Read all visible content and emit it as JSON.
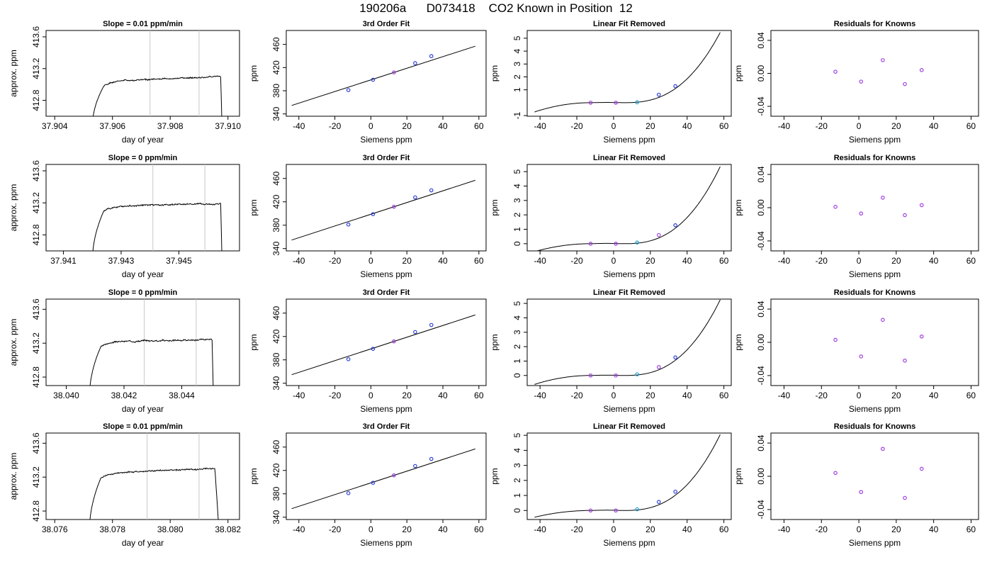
{
  "page": {
    "title": "190206a      D073418    CO2 Known in Position  12"
  },
  "chart_data": [
    {
      "type": "line",
      "row": 0,
      "col": 0,
      "title": "Slope =  0.01  ppm/min",
      "xlabel": "day of year",
      "ylabel": "approx. ppm",
      "xlim": [
        37.9037,
        37.9104
      ],
      "ylim": [
        412.6,
        413.68
      ],
      "xticks": [
        37.904,
        37.906,
        37.908,
        37.91
      ],
      "xtick_labels": [
        "37.904",
        "37.906",
        "37.908",
        "37.910"
      ],
      "yticks": [
        412.8,
        413.2,
        413.6
      ],
      "ytick_labels": [
        "412.8",
        "413.2",
        "413.6"
      ],
      "vlines": [
        37.9073,
        37.909
      ],
      "trace": {
        "start": 37.9053,
        "rise_end": 37.9057,
        "plateau_start": 413.04,
        "plateau_end": 413.1,
        "end": 37.90975,
        "drop_end": 37.9098,
        "noise": 0.013,
        "seed": 1
      },
      "series": [
        {
          "values": []
        }
      ]
    },
    {
      "type": "line",
      "row": 0,
      "col": 1,
      "title": "3rd Order Fit",
      "xlabel": "Siemens ppm",
      "ylabel": "ppm",
      "xlim": [
        -47,
        64
      ],
      "ylim": [
        336,
        484
      ],
      "xticks": [
        -40,
        -20,
        0,
        20,
        40,
        60
      ],
      "xtick_labels": [
        "-40",
        "-20",
        "0",
        "20",
        "40",
        "60"
      ],
      "yticks": [
        340,
        380,
        420,
        460
      ],
      "ytick_labels": [
        "340",
        "380",
        "420",
        "460"
      ],
      "line": {
        "x": [
          -44,
          58
        ],
        "slope": 1.0027,
        "intercept": 398.7
      },
      "points": [
        {
          "x": -12.5,
          "y": 381.1,
          "color": "#2b3fd6"
        },
        {
          "x": 1.2,
          "y": 398.9,
          "color": "#2b3fd6"
        },
        {
          "x": 12.8,
          "y": 411.6,
          "color": "#a040e0"
        },
        {
          "x": 24.6,
          "y": 427.6,
          "color": "#2b3fd6"
        },
        {
          "x": 33.6,
          "y": 439.7,
          "color": "#2b3fd6"
        }
      ]
    },
    {
      "type": "line",
      "row": 0,
      "col": 2,
      "title": "Linear Fit Removed",
      "xlabel": "Siemens ppm",
      "ylabel": "ppm",
      "xlim": [
        -47,
        64
      ],
      "ylim": [
        -1.05,
        5.6
      ],
      "xticks": [
        -40,
        -20,
        0,
        20,
        40,
        60
      ],
      "xtick_labels": [
        "-40",
        "-20",
        "0",
        "20",
        "40",
        "60"
      ],
      "yticks": [
        -1,
        1,
        2,
        3,
        4,
        5
      ],
      "ytick_labels": [
        "-1",
        "1",
        "2",
        "3",
        "4",
        "5"
      ],
      "curve": {
        "x": [
          -43,
          58
        ],
        "ya": -0.72,
        "y1": 0.0,
        "xm": 5,
        "xr": 58,
        "yr": 5.45
      },
      "points": [
        {
          "x": -12.5,
          "y": 0.0,
          "color": "#a040e0"
        },
        {
          "x": 1.2,
          "y": 0.0,
          "color": "#a040e0"
        },
        {
          "x": 12.8,
          "y": 0.03,
          "color": "#20a0d0"
        },
        {
          "x": 24.6,
          "y": 0.62,
          "color": "#2b3fd6"
        },
        {
          "x": 33.6,
          "y": 1.28,
          "color": "#2b3fd6"
        }
      ]
    },
    {
      "type": "scatter",
      "row": 0,
      "col": 3,
      "title": "Residuals for Knowns",
      "xlabel": "Siemens ppm",
      "ylabel": "ppm",
      "xlim": [
        -47,
        64
      ],
      "ylim": [
        -0.052,
        0.052
      ],
      "xticks": [
        -40,
        -20,
        0,
        20,
        40,
        60
      ],
      "xtick_labels": [
        "-40",
        "-20",
        "0",
        "20",
        "40",
        "60"
      ],
      "yticks": [
        -0.04,
        0.0,
        0.04
      ],
      "ytick_labels": [
        "-0.04",
        "0.00",
        "0.04"
      ],
      "points": [
        {
          "x": -12.5,
          "y": 0.002,
          "color": "#a040e0"
        },
        {
          "x": 1.2,
          "y": -0.01,
          "color": "#a040e0"
        },
        {
          "x": 12.8,
          "y": 0.016,
          "color": "#a040e0"
        },
        {
          "x": 24.6,
          "y": -0.013,
          "color": "#a040e0"
        },
        {
          "x": 33.6,
          "y": 0.004,
          "color": "#a040e0"
        }
      ]
    },
    {
      "type": "line",
      "row": 1,
      "col": 0,
      "title": "Slope =  0  ppm/min",
      "xlabel": "day of year",
      "ylabel": "approx. ppm",
      "xlim": [
        37.9404,
        37.9471
      ],
      "ylim": [
        412.6,
        413.68
      ],
      "xticks": [
        37.941,
        37.943,
        37.945
      ],
      "xtick_labels": [
        "37.941",
        "37.943",
        "37.945"
      ],
      "yticks": [
        412.8,
        413.2,
        413.6
      ],
      "ytick_labels": [
        "412.8",
        "413.2",
        "413.6"
      ],
      "vlines": [
        37.9441,
        37.9459
      ],
      "trace": {
        "start": 37.942,
        "rise_end": 37.9424,
        "plateau_start": 413.16,
        "plateau_end": 413.19,
        "end": 37.94645,
        "drop_end": 37.9465,
        "noise": 0.014,
        "seed": 2
      },
      "series": [
        {
          "values": []
        }
      ]
    },
    {
      "type": "line",
      "row": 1,
      "col": 1,
      "title": "3rd Order Fit",
      "xlabel": "Siemens ppm",
      "ylabel": "ppm",
      "xlim": [
        -47,
        64
      ],
      "ylim": [
        336,
        484
      ],
      "xticks": [
        -40,
        -20,
        0,
        20,
        40,
        60
      ],
      "xtick_labels": [
        "-40",
        "-20",
        "0",
        "20",
        "40",
        "60"
      ],
      "yticks": [
        340,
        380,
        420,
        460
      ],
      "ytick_labels": [
        "340",
        "380",
        "420",
        "460"
      ],
      "line": {
        "x": [
          -44,
          58
        ],
        "slope": 1.0027,
        "intercept": 398.7
      },
      "points": [
        {
          "x": -12.5,
          "y": 381.1,
          "color": "#2b3fd6"
        },
        {
          "x": 1.2,
          "y": 398.9,
          "color": "#2b3fd6"
        },
        {
          "x": 12.8,
          "y": 411.6,
          "color": "#a040e0"
        },
        {
          "x": 24.6,
          "y": 427.6,
          "color": "#2b3fd6"
        },
        {
          "x": 33.6,
          "y": 439.7,
          "color": "#2b3fd6"
        }
      ]
    },
    {
      "type": "line",
      "row": 1,
      "col": 2,
      "title": "Linear Fit Removed",
      "xlabel": "Siemens ppm",
      "ylabel": "ppm",
      "xlim": [
        -47,
        64
      ],
      "ylim": [
        -0.5,
        5.5
      ],
      "xticks": [
        -40,
        -20,
        0,
        20,
        40,
        60
      ],
      "xtick_labels": [
        "-40",
        "-20",
        "0",
        "20",
        "40",
        "60"
      ],
      "yticks": [
        0,
        1,
        2,
        3,
        4,
        5
      ],
      "ytick_labels": [
        "0",
        "1",
        "2",
        "3",
        "4",
        "5"
      ],
      "curve": {
        "x": [
          -43,
          58
        ],
        "ya": -0.55,
        "y1": 0.0,
        "xm": 5,
        "xr": 58,
        "yr": 5.35
      },
      "points": [
        {
          "x": -12.5,
          "y": 0.0,
          "color": "#a040e0"
        },
        {
          "x": 1.2,
          "y": 0.0,
          "color": "#a040e0"
        },
        {
          "x": 12.8,
          "y": 0.08,
          "color": "#20a0d0"
        },
        {
          "x": 24.6,
          "y": 0.6,
          "color": "#a040e0"
        },
        {
          "x": 33.6,
          "y": 1.28,
          "color": "#2b3fd6"
        }
      ]
    },
    {
      "type": "scatter",
      "row": 1,
      "col": 3,
      "title": "Residuals for Knowns",
      "xlabel": "Siemens ppm",
      "ylabel": "ppm",
      "xlim": [
        -47,
        64
      ],
      "ylim": [
        -0.052,
        0.052
      ],
      "xticks": [
        -40,
        -20,
        0,
        20,
        40,
        60
      ],
      "xtick_labels": [
        "-40",
        "-20",
        "0",
        "20",
        "40",
        "60"
      ],
      "yticks": [
        -0.04,
        0.0,
        0.04
      ],
      "ytick_labels": [
        "-0.04",
        "0.00",
        "0.04"
      ],
      "points": [
        {
          "x": -12.5,
          "y": 0.001,
          "color": "#a040e0"
        },
        {
          "x": 1.2,
          "y": -0.007,
          "color": "#a040e0"
        },
        {
          "x": 12.8,
          "y": 0.012,
          "color": "#a040e0"
        },
        {
          "x": 24.6,
          "y": -0.009,
          "color": "#a040e0"
        },
        {
          "x": 33.6,
          "y": 0.003,
          "color": "#a040e0"
        }
      ]
    },
    {
      "type": "line",
      "row": 2,
      "col": 0,
      "title": "Slope =  0  ppm/min",
      "xlabel": "day of year",
      "ylabel": "approx. ppm",
      "xlim": [
        38.0393,
        38.046
      ],
      "ylim": [
        412.7,
        413.72
      ],
      "xticks": [
        38.04,
        38.042,
        38.044
      ],
      "xtick_labels": [
        "38.040",
        "38.042",
        "38.044"
      ],
      "yticks": [
        412.8,
        413.2,
        413.6
      ],
      "ytick_labels": [
        "412.8",
        "413.2",
        "413.6"
      ],
      "vlines": [
        38.0427,
        38.0445
      ],
      "trace": {
        "start": 38.0408,
        "rise_end": 38.0412,
        "plateau_start": 413.22,
        "plateau_end": 413.24,
        "end": 38.04505,
        "drop_end": 38.0451,
        "noise": 0.012,
        "seed": 3
      },
      "series": [
        {
          "values": []
        }
      ]
    },
    {
      "type": "line",
      "row": 2,
      "col": 1,
      "title": "3rd Order Fit",
      "xlabel": "Siemens ppm",
      "ylabel": "ppm",
      "xlim": [
        -47,
        64
      ],
      "ylim": [
        336,
        484
      ],
      "xticks": [
        -40,
        -20,
        0,
        20,
        40,
        60
      ],
      "xtick_labels": [
        "-40",
        "-20",
        "0",
        "20",
        "40",
        "60"
      ],
      "yticks": [
        340,
        380,
        420,
        460
      ],
      "ytick_labels": [
        "340",
        "380",
        "420",
        "460"
      ],
      "line": {
        "x": [
          -44,
          58
        ],
        "slope": 1.0027,
        "intercept": 398.7
      },
      "points": [
        {
          "x": -12.5,
          "y": 381.1,
          "color": "#2b3fd6"
        },
        {
          "x": 1.2,
          "y": 398.9,
          "color": "#2b3fd6"
        },
        {
          "x": 12.8,
          "y": 411.6,
          "color": "#a040e0"
        },
        {
          "x": 24.6,
          "y": 427.6,
          "color": "#2b3fd6"
        },
        {
          "x": 33.6,
          "y": 439.7,
          "color": "#2b3fd6"
        }
      ]
    },
    {
      "type": "line",
      "row": 2,
      "col": 2,
      "title": "Linear Fit Removed",
      "xlabel": "Siemens ppm",
      "ylabel": "ppm",
      "xlim": [
        -47,
        64
      ],
      "ylim": [
        -0.7,
        5.3
      ],
      "xticks": [
        -40,
        -20,
        0,
        20,
        40,
        60
      ],
      "xtick_labels": [
        "-40",
        "-20",
        "0",
        "20",
        "40",
        "60"
      ],
      "yticks": [
        0,
        1,
        2,
        3,
        4,
        5
      ],
      "ytick_labels": [
        "0",
        "1",
        "2",
        "3",
        "4",
        "5"
      ],
      "curve": {
        "x": [
          -43,
          58
        ],
        "ya": -0.62,
        "y1": 0.0,
        "xm": 5,
        "xr": 58,
        "yr": 5.25
      },
      "points": [
        {
          "x": -12.5,
          "y": 0.0,
          "color": "#a040e0"
        },
        {
          "x": 1.2,
          "y": 0.0,
          "color": "#a040e0"
        },
        {
          "x": 12.8,
          "y": 0.08,
          "color": "#20a0d0"
        },
        {
          "x": 24.6,
          "y": 0.58,
          "color": "#a040e0"
        },
        {
          "x": 33.6,
          "y": 1.25,
          "color": "#2b3fd6"
        }
      ]
    },
    {
      "type": "scatter",
      "row": 2,
      "col": 3,
      "title": "Residuals for Knowns",
      "xlabel": "Siemens ppm",
      "ylabel": "ppm",
      "xlim": [
        -47,
        64
      ],
      "ylim": [
        -0.052,
        0.052
      ],
      "xticks": [
        -40,
        -20,
        0,
        20,
        40,
        60
      ],
      "xtick_labels": [
        "-40",
        "-20",
        "0",
        "20",
        "40",
        "60"
      ],
      "yticks": [
        -0.04,
        0.0,
        0.04
      ],
      "ytick_labels": [
        "-0.04",
        "0.00",
        "0.04"
      ],
      "points": [
        {
          "x": -12.5,
          "y": 0.003,
          "color": "#a040e0"
        },
        {
          "x": 1.2,
          "y": -0.017,
          "color": "#a040e0"
        },
        {
          "x": 12.8,
          "y": 0.027,
          "color": "#a040e0"
        },
        {
          "x": 24.6,
          "y": -0.022,
          "color": "#a040e0"
        },
        {
          "x": 33.6,
          "y": 0.007,
          "color": "#a040e0"
        }
      ]
    },
    {
      "type": "line",
      "row": 3,
      "col": 0,
      "title": "Slope =  0.01  ppm/min",
      "xlabel": "day of year",
      "ylabel": "approx. ppm",
      "xlim": [
        38.0757,
        38.0824
      ],
      "ylim": [
        412.7,
        413.72
      ],
      "xticks": [
        38.076,
        38.078,
        38.08,
        38.082
      ],
      "xtick_labels": [
        "38.076",
        "38.078",
        "38.080",
        "38.082"
      ],
      "yticks": [
        412.8,
        413.2,
        413.6
      ],
      "ytick_labels": [
        "412.8",
        "413.2",
        "413.6"
      ],
      "vlines": [
        38.0792,
        38.081
      ],
      "trace": {
        "start": 38.0772,
        "rise_end": 38.0776,
        "plateau_start": 413.25,
        "plateau_end": 413.3,
        "end": 38.08155,
        "drop_end": 38.0817,
        "noise": 0.012,
        "seed": 4
      },
      "series": [
        {
          "values": []
        }
      ]
    },
    {
      "type": "line",
      "row": 3,
      "col": 1,
      "title": "3rd Order Fit",
      "xlabel": "Siemens ppm",
      "ylabel": "ppm",
      "xlim": [
        -47,
        64
      ],
      "ylim": [
        336,
        484
      ],
      "xticks": [
        -40,
        -20,
        0,
        20,
        40,
        60
      ],
      "xtick_labels": [
        "-40",
        "-20",
        "0",
        "20",
        "40",
        "60"
      ],
      "yticks": [
        340,
        380,
        420,
        460
      ],
      "ytick_labels": [
        "340",
        "380",
        "420",
        "460"
      ],
      "line": {
        "x": [
          -44,
          58
        ],
        "slope": 1.0027,
        "intercept": 398.7
      },
      "points": [
        {
          "x": -12.5,
          "y": 381.1,
          "color": "#2b3fd6"
        },
        {
          "x": 1.2,
          "y": 398.9,
          "color": "#2b3fd6"
        },
        {
          "x": 12.8,
          "y": 411.6,
          "color": "#a040e0"
        },
        {
          "x": 24.6,
          "y": 427.6,
          "color": "#2b3fd6"
        },
        {
          "x": 33.6,
          "y": 439.7,
          "color": "#2b3fd6"
        }
      ]
    },
    {
      "type": "line",
      "row": 3,
      "col": 2,
      "title": "Linear Fit Removed",
      "xlabel": "Siemens ppm",
      "ylabel": "ppm",
      "xlim": [
        -47,
        64
      ],
      "ylim": [
        -0.6,
        5.15
      ],
      "xticks": [
        -40,
        -20,
        0,
        20,
        40,
        60
      ],
      "xtick_labels": [
        "-40",
        "-20",
        "0",
        "20",
        "40",
        "60"
      ],
      "yticks": [
        0,
        1,
        2,
        3,
        4,
        5
      ],
      "ytick_labels": [
        "0",
        "1",
        "2",
        "3",
        "4",
        "5"
      ],
      "curve": {
        "x": [
          -43,
          58
        ],
        "ya": -0.45,
        "y1": 0.0,
        "xm": 5,
        "xr": 58,
        "yr": 5.05
      },
      "points": [
        {
          "x": -12.5,
          "y": 0.0,
          "color": "#a040e0"
        },
        {
          "x": 1.2,
          "y": 0.0,
          "color": "#a040e0"
        },
        {
          "x": 12.8,
          "y": 0.08,
          "color": "#20a0d0"
        },
        {
          "x": 24.6,
          "y": 0.57,
          "color": "#2b3fd6"
        },
        {
          "x": 33.6,
          "y": 1.25,
          "color": "#2b3fd6"
        }
      ]
    },
    {
      "type": "scatter",
      "row": 3,
      "col": 3,
      "title": "Residuals for Knowns",
      "xlabel": "Siemens ppm",
      "ylabel": "ppm",
      "xlim": [
        -47,
        64
      ],
      "ylim": [
        -0.052,
        0.052
      ],
      "xticks": [
        -40,
        -20,
        0,
        20,
        40,
        60
      ],
      "xtick_labels": [
        "-40",
        "-20",
        "0",
        "20",
        "40",
        "60"
      ],
      "yticks": [
        -0.04,
        0.0,
        0.04
      ],
      "ytick_labels": [
        "-0.04",
        "0.00",
        "0.04"
      ],
      "points": [
        {
          "x": -12.5,
          "y": 0.004,
          "color": "#a040e0"
        },
        {
          "x": 1.2,
          "y": -0.019,
          "color": "#a040e0"
        },
        {
          "x": 12.8,
          "y": 0.033,
          "color": "#a040e0"
        },
        {
          "x": 24.6,
          "y": -0.026,
          "color": "#a040e0"
        },
        {
          "x": 33.6,
          "y": 0.009,
          "color": "#a040e0"
        }
      ]
    }
  ]
}
